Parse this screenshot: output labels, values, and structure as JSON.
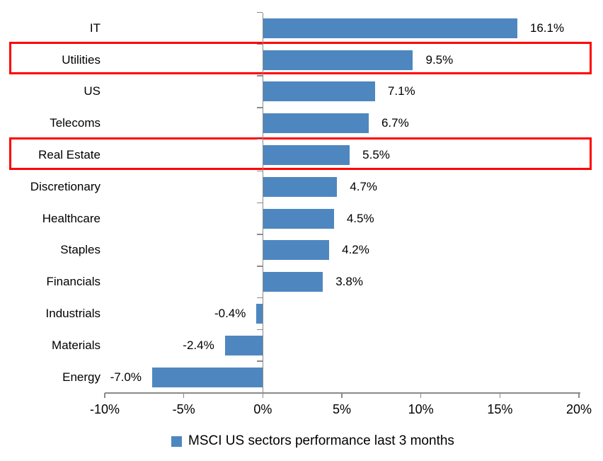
{
  "chart_data": {
    "type": "bar",
    "orientation": "horizontal",
    "title": "",
    "xlabel": "",
    "ylabel": "",
    "categories": [
      "IT",
      "Utilities",
      "US",
      "Telecoms",
      "Real Estate",
      "Discretionary",
      "Healthcare",
      "Staples",
      "Financials",
      "Industrials",
      "Materials",
      "Energy"
    ],
    "values": [
      16.1,
      9.5,
      7.1,
      6.7,
      5.5,
      4.7,
      4.5,
      4.2,
      3.8,
      -0.4,
      -2.4,
      -7.0
    ],
    "value_labels": [
      "16.1%",
      "9.5%",
      "7.1%",
      "6.7%",
      "5.5%",
      "4.7%",
      "4.5%",
      "4.2%",
      "3.8%",
      "-0.4%",
      "-2.4%",
      "-7.0%"
    ],
    "highlighted_categories": [
      "Utilities",
      "Real Estate"
    ],
    "xlim": [
      -10,
      20
    ],
    "x_tick_labels": [
      "-10%",
      "-5%",
      "0%",
      "5%",
      "10%",
      "15%",
      "20%"
    ],
    "grid": false,
    "legend_position": "bottom",
    "legend": "MSCI US sectors performance last 3 months",
    "bar_color": "#4e87c0",
    "highlight_color": "#ff0000",
    "axis_color": "#8a8a8a",
    "text_color": "#000000",
    "background_color": "#ffffff"
  }
}
